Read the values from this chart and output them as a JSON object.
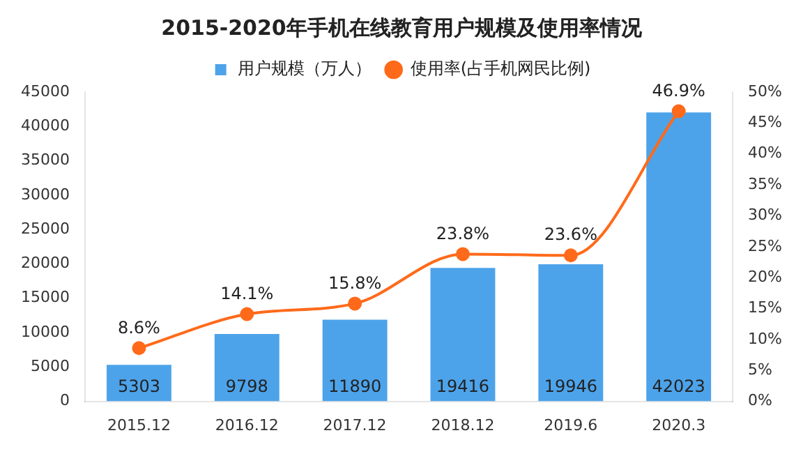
{
  "chart_data": {
    "type": "bar",
    "title": "2015-2020年手机在线教育用户规模及使用率情况",
    "categories": [
      "2015.12",
      "2016.12",
      "2017.12",
      "2018.12",
      "2019.6",
      "2020.3"
    ],
    "series": [
      {
        "name": "用户规模（万人）",
        "color": "#4da3ea",
        "values": [
          5303,
          9798,
          11890,
          19416,
          19946,
          42023
        ],
        "value_labels": [
          "5303",
          "9798",
          "11890",
          "19416",
          "19946",
          "42023"
        ]
      },
      {
        "name": "使用率(占手机网民比例)",
        "type": "line",
        "axis": "y2",
        "color": "#ff6a1a",
        "values": [
          8.6,
          14.1,
          15.8,
          23.8,
          23.6,
          46.9
        ],
        "value_labels": [
          "8.6%",
          "14.1%",
          "15.8%",
          "23.8%",
          "23.6%",
          "46.9%"
        ]
      }
    ],
    "ylim": [
      0,
      45000
    ],
    "yticks": [
      0,
      5000,
      10000,
      15000,
      20000,
      25000,
      30000,
      35000,
      40000,
      45000
    ],
    "y2lim": [
      0,
      50
    ],
    "y2ticks": [
      {
        "value": 0,
        "label": "0%"
      },
      {
        "value": 5,
        "label": "5%"
      },
      {
        "value": 10,
        "label": "10%"
      },
      {
        "value": 15,
        "label": "15%"
      },
      {
        "value": 20,
        "label": "20%"
      },
      {
        "value": 25,
        "label": "25%"
      },
      {
        "value": 30,
        "label": "30%"
      },
      {
        "value": 35,
        "label": "35%"
      },
      {
        "value": 40,
        "label": "40%"
      },
      {
        "value": 45,
        "label": "45%"
      },
      {
        "value": 50,
        "label": "50%"
      }
    ],
    "legend": "top",
    "marker": "circle",
    "line_style": "solid"
  }
}
